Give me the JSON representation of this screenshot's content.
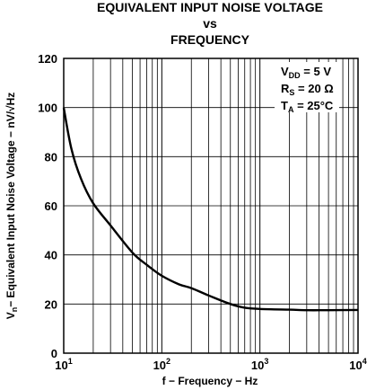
{
  "chart_data": {
    "type": "line",
    "title_lines": [
      "EQUIVALENT INPUT NOISE VOLTAGE",
      "vs",
      "FREQUENCY"
    ],
    "xlabel": "f − Frequency − Hz",
    "ylabel": {
      "main": "V",
      "sub": "n",
      "rest": "− Equivalent Input Noise Voltage − nV/√Hz"
    },
    "x_scale": "log",
    "xlim": [
      10,
      10000
    ],
    "ylim": [
      0,
      120
    ],
    "grid": true,
    "x_ticks": [
      {
        "value": 10,
        "base": "10",
        "exp": "1"
      },
      {
        "value": 100,
        "base": "10",
        "exp": "2"
      },
      {
        "value": 1000,
        "base": "10",
        "exp": "3"
      },
      {
        "value": 10000,
        "base": "10",
        "exp": "4"
      }
    ],
    "y_ticks": [
      "0",
      "20",
      "40",
      "60",
      "80",
      "100",
      "120"
    ],
    "conditions": [
      {
        "main": "V",
        "sub": "DD",
        "rest": " = 5 V"
      },
      {
        "main": "R",
        "sub": "S",
        "rest": " = 20 Ω"
      },
      {
        "main": "T",
        "sub": "A",
        "rest": " = 25°C"
      }
    ],
    "legend_position": "top-right",
    "series": [
      {
        "x": [
          10,
          12,
          15,
          20,
          30,
          50,
          70,
          100,
          150,
          200,
          300,
          500,
          700,
          1000,
          2000,
          3000,
          5000,
          10000
        ],
        "y": [
          100,
          83,
          71,
          61,
          52,
          41,
          36,
          31.5,
          28,
          26.5,
          23.5,
          20,
          18.5,
          18,
          17.7,
          17.5,
          17.5,
          17.6
        ]
      }
    ]
  }
}
